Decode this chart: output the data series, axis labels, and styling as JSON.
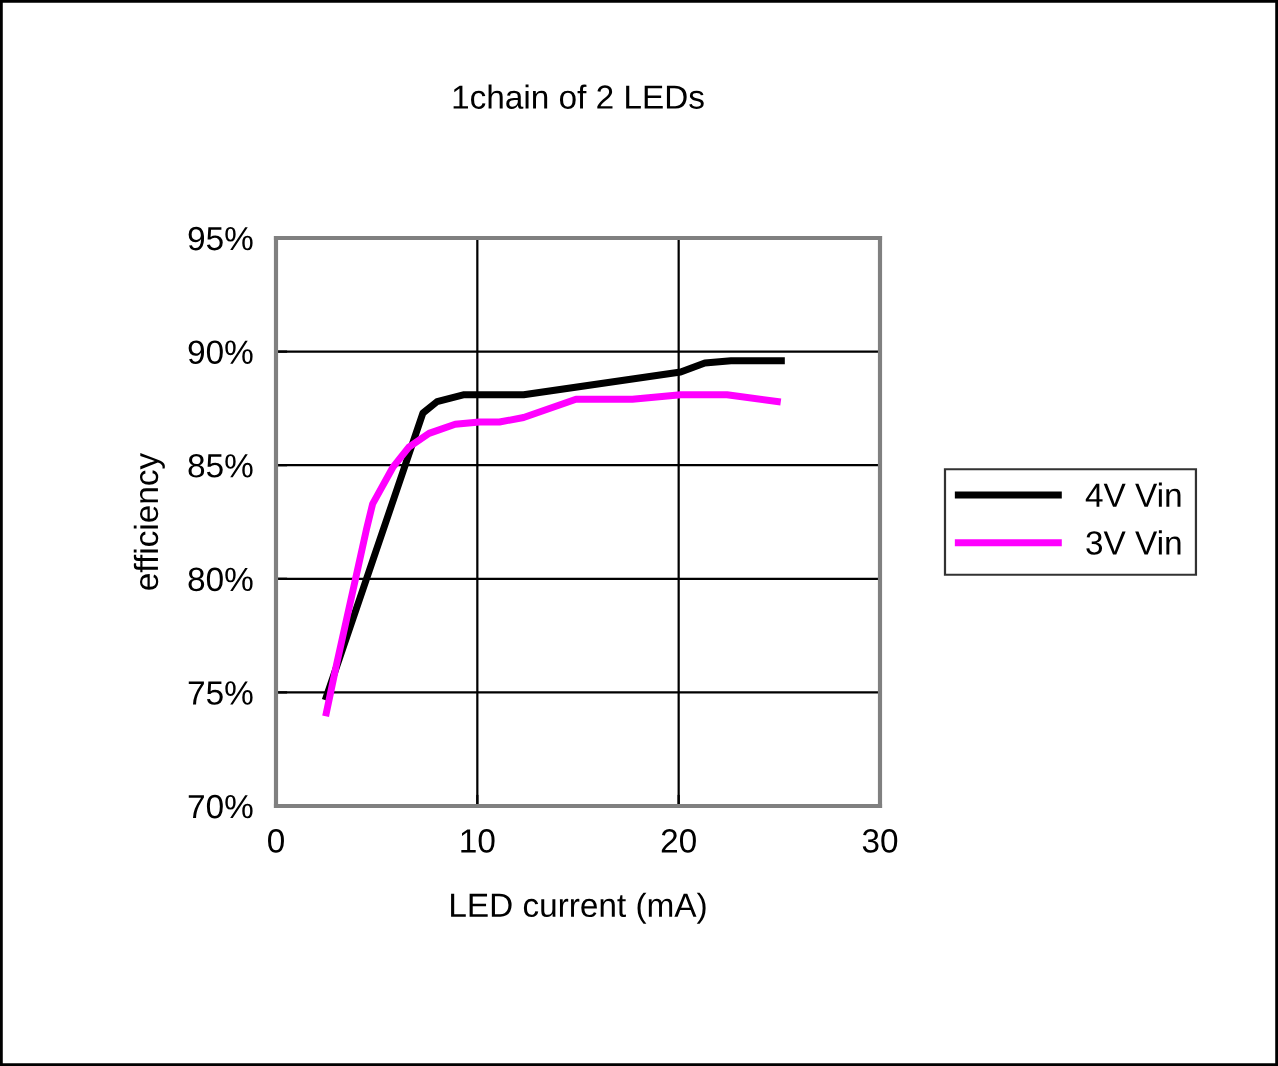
{
  "chart_data": {
    "type": "line",
    "title": "1chain of 2 LEDs",
    "xlabel": "LED current (mA)",
    "ylabel": "efficiency",
    "xlim": [
      0,
      30
    ],
    "xticks": [
      0,
      10,
      20,
      30
    ],
    "ylim": [
      70,
      95
    ],
    "yticks": [
      {
        "value": 70,
        "label": "70%"
      },
      {
        "value": 75,
        "label": "75%"
      },
      {
        "value": 80,
        "label": "80%"
      },
      {
        "value": 85,
        "label": "85%"
      },
      {
        "value": 90,
        "label": "90%"
      },
      {
        "value": 95,
        "label": "95%"
      }
    ],
    "grid": true,
    "legend": "right",
    "marker": "none",
    "line_style": "solid",
    "series": [
      {
        "name": "4V Vin",
        "color": "#000000",
        "x": [
          2.5,
          7.3,
          8.0,
          9.3,
          12.3,
          20.1,
          21.3,
          22.6,
          25.1
        ],
        "values": [
          74.8,
          87.3,
          87.8,
          88.1,
          88.1,
          89.1,
          89.5,
          89.6,
          89.6
        ]
      },
      {
        "name": "3V Vin",
        "color": "#ff00ff",
        "x": [
          2.5,
          3.0,
          3.8,
          4.5,
          4.8,
          5.8,
          6.6,
          7.6,
          8.9,
          10.1,
          11.1,
          12.3,
          14.9,
          16.1,
          17.7,
          20.1,
          22.4,
          24.9
        ],
        "values": [
          74.1,
          76.2,
          79.4,
          82.2,
          83.3,
          84.9,
          85.8,
          86.4,
          86.8,
          86.9,
          86.9,
          87.1,
          87.9,
          87.9,
          87.9,
          88.1,
          88.1,
          87.8
        ]
      }
    ]
  }
}
